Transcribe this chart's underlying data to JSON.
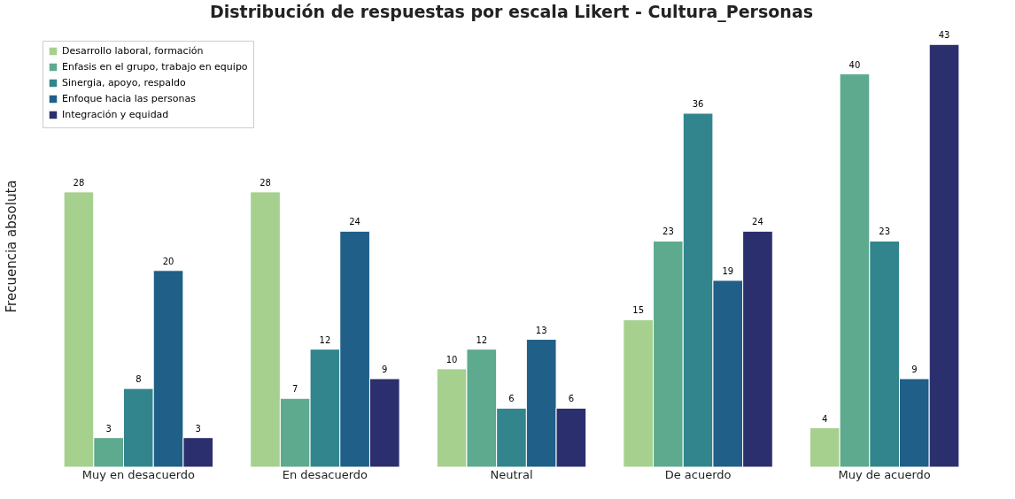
{
  "chart_data": {
    "type": "bar",
    "title": "Distribución de respuestas por escala Likert - Cultura_Personas",
    "ylabel": "Frecuencia absoluta",
    "categories": [
      "Muy en desacuerdo",
      "En desacuerdo",
      "Neutral",
      "De acuerdo",
      "Muy de acuerdo"
    ],
    "series": [
      {
        "name": "Desarrollo laboral, formación",
        "color": "#a6d08e",
        "values": [
          28,
          28,
          10,
          15,
          4
        ]
      },
      {
        "name": "Enfasis en el grupo, trabajo en equipo",
        "color": "#5eaa8e",
        "values": [
          3,
          7,
          12,
          23,
          40
        ]
      },
      {
        "name": "Sinergia, apoyo, respaldo",
        "color": "#32858d",
        "values": [
          8,
          12,
          6,
          36,
          23
        ]
      },
      {
        "name": "Enfoque hacia las personas",
        "color": "#1f5f88",
        "values": [
          20,
          24,
          13,
          19,
          9
        ]
      },
      {
        "name": "Integración y equidad",
        "color": "#2c2f6e",
        "values": [
          3,
          9,
          6,
          24,
          43
        ]
      }
    ],
    "data_labels": true,
    "legend": "top left",
    "grid": false,
    "tick_labels": "x"
  }
}
